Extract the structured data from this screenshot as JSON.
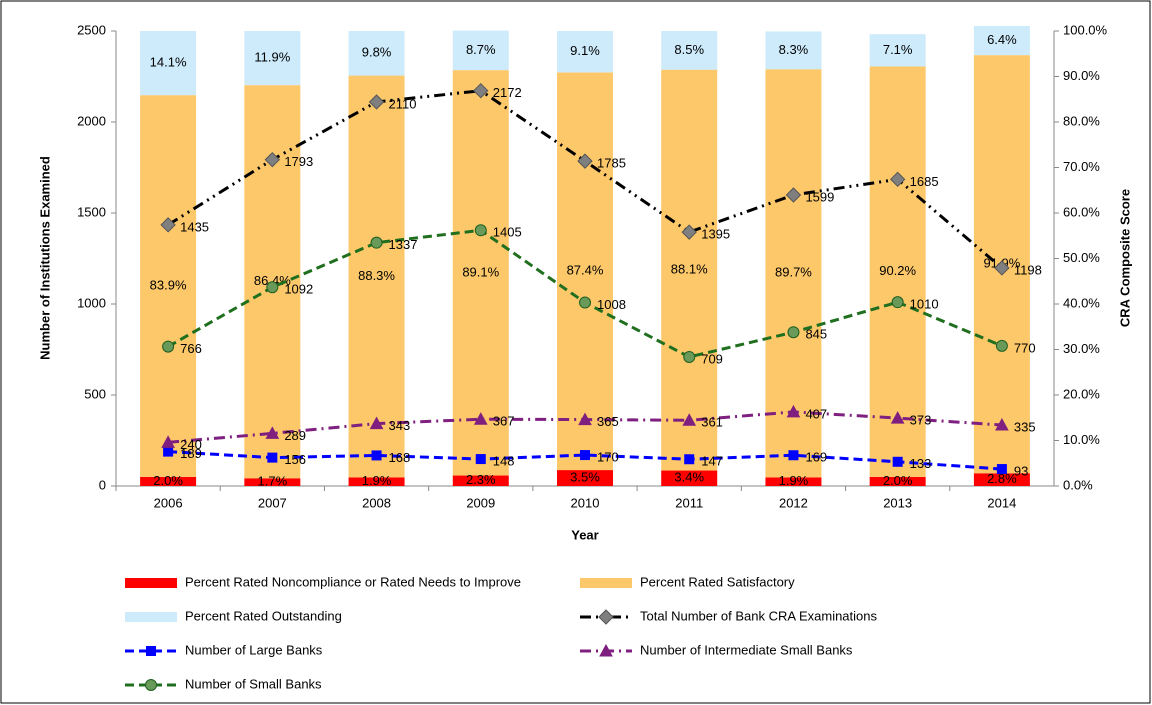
{
  "chart_data": {
    "type": "combo",
    "x_label": "Year",
    "y_label": "Number of Institutions Examined",
    "y2_label": "CRA Composite Score",
    "categories": [
      "2006",
      "2007",
      "2008",
      "2009",
      "2010",
      "2011",
      "2012",
      "2013",
      "2014"
    ],
    "ylim": [
      0,
      2500
    ],
    "yticks": [
      0,
      500,
      1000,
      1500,
      2000,
      2500
    ],
    "y2lim": [
      0,
      100
    ],
    "y2ticks": [
      {
        "value": 0,
        "label": "0.0%"
      },
      {
        "value": 10,
        "label": "10.0%"
      },
      {
        "value": 20,
        "label": "20.0%"
      },
      {
        "value": 30,
        "label": "30.0%"
      },
      {
        "value": 40,
        "label": "40.0%"
      },
      {
        "value": 50,
        "label": "50.0%"
      },
      {
        "value": 60,
        "label": "60.0%"
      },
      {
        "value": 70,
        "label": "70.0%"
      },
      {
        "value": 80,
        "label": "80.0%"
      },
      {
        "value": 90,
        "label": "90.0%"
      },
      {
        "value": 100,
        "label": "100.0%"
      }
    ],
    "stacked": true,
    "legend": "bottom",
    "series": [
      {
        "name": "Percent Rated Noncompliance or Rated Needs to Improve",
        "type": "bar",
        "axis": "y2",
        "color": "#ff0000",
        "values": [
          2.0,
          1.7,
          1.9,
          2.3,
          3.5,
          3.4,
          1.9,
          2.0,
          2.8
        ],
        "value_labels": [
          "2.0%",
          "1.7%",
          "1.9%",
          "2.3%",
          "3.5%",
          "3.4%",
          "1.9%",
          "2.0%",
          "2.8%"
        ]
      },
      {
        "name": "Percent Rated Satisfactory",
        "type": "bar",
        "axis": "y2",
        "color": "#fdc86a",
        "values": [
          83.9,
          86.4,
          88.3,
          89.1,
          87.4,
          88.1,
          89.7,
          90.2,
          91.9
        ],
        "value_labels": [
          "83.9%",
          "86.4%",
          "88.3%",
          "89.1%",
          "87.4%",
          "88.1%",
          "89.7%",
          "90.2%",
          "91.9%"
        ]
      },
      {
        "name": "Percent Rated Outstanding",
        "type": "bar",
        "axis": "y2",
        "color": "#cdebfb",
        "values": [
          14.1,
          11.9,
          9.8,
          8.7,
          9.1,
          8.5,
          8.3,
          7.1,
          6.4
        ],
        "value_labels": [
          "14.1%",
          "11.9%",
          "9.8%",
          "8.7%",
          "9.1%",
          "8.5%",
          "8.3%",
          "7.1%",
          "6.4%"
        ]
      },
      {
        "name": "Total Number of Bank CRA Examinations",
        "type": "line",
        "color": "#000000",
        "marker": "diamond",
        "marker_color": "#7f7f7f",
        "dash": "dash-dot-dot",
        "values": [
          1435,
          1793,
          2110,
          2172,
          1785,
          1395,
          1599,
          1685,
          1198
        ]
      },
      {
        "name": "Number of Large Banks",
        "type": "line",
        "color": "#0000ff",
        "marker": "square",
        "marker_color": "#0000ff",
        "dash": "dash",
        "values": [
          189,
          156,
          168,
          148,
          170,
          147,
          169,
          133,
          93
        ]
      },
      {
        "name": "Number of Intermediate Small Banks",
        "type": "line",
        "color": "#7f1f7f",
        "marker": "triangle",
        "marker_color": "#7f1f7f",
        "dash": "dash-dot",
        "values": [
          240,
          289,
          343,
          367,
          365,
          361,
          407,
          373,
          335
        ]
      },
      {
        "name": "Number of Small Banks",
        "type": "line",
        "color": "#1f6f1f",
        "marker": "circle",
        "marker_color": "#6a9a5a",
        "dash": "dash",
        "values": [
          766,
          1092,
          1337,
          1405,
          1008,
          709,
          845,
          1010,
          770
        ]
      }
    ]
  }
}
